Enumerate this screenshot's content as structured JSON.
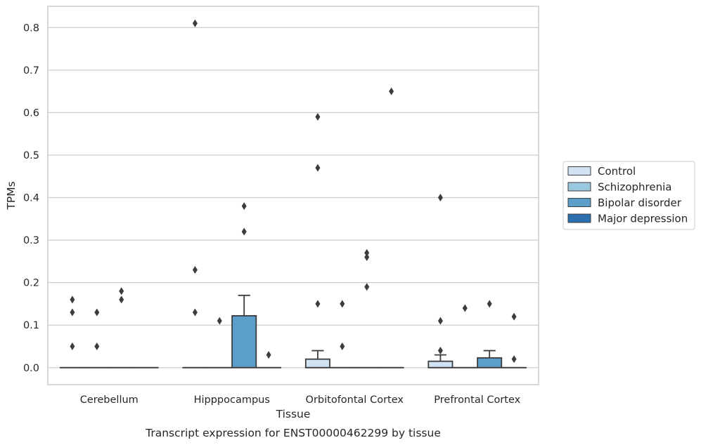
{
  "chart_data": {
    "type": "box",
    "categories": [
      "Cerebellum",
      "Hipppocampus",
      "Orbitofontal Cortex",
      "Prefrontal Cortex"
    ],
    "xlabel": "Tissue",
    "ylabel": "TPMs",
    "caption": "Transcript expression for ENST00000462299 by tissue",
    "ylim": [
      -0.04,
      0.85
    ],
    "yticks": [
      0.0,
      0.1,
      0.2,
      0.3,
      0.4,
      0.5,
      0.6,
      0.7,
      0.8
    ],
    "ytick_labels": [
      "0.0",
      "0.1",
      "0.2",
      "0.3",
      "0.4",
      "0.5",
      "0.6",
      "0.7",
      "0.8"
    ],
    "grid": "horizontal",
    "legend_position": "right",
    "series": [
      {
        "name": "Control",
        "color": "#d1e2f2",
        "boxes": [
          {
            "q1": 0,
            "median": 0,
            "q3": 0,
            "whisker_low": 0,
            "whisker_high": 0,
            "outliers": [
              0.05,
              0.13,
              0.16
            ]
          },
          {
            "q1": 0,
            "median": 0,
            "q3": 0,
            "whisker_low": 0,
            "whisker_high": 0,
            "outliers": [
              0.13,
              0.23,
              0.81
            ]
          },
          {
            "q1": 0,
            "median": 0,
            "q3": 0.02,
            "whisker_low": 0,
            "whisker_high": 0.04,
            "outliers": [
              0.15,
              0.47,
              0.59
            ]
          },
          {
            "q1": 0,
            "median": 0,
            "q3": 0.015,
            "whisker_low": 0,
            "whisker_high": 0.03,
            "outliers": [
              0.04,
              0.11,
              0.4
            ]
          }
        ]
      },
      {
        "name": "Schizophrenia",
        "color": "#9ac8e0",
        "boxes": [
          {
            "q1": 0,
            "median": 0,
            "q3": 0,
            "whisker_low": 0,
            "whisker_high": 0,
            "outliers": [
              0.05,
              0.13
            ]
          },
          {
            "q1": 0,
            "median": 0,
            "q3": 0,
            "whisker_low": 0,
            "whisker_high": 0,
            "outliers": [
              0.11
            ]
          },
          {
            "q1": 0,
            "median": 0,
            "q3": 0,
            "whisker_low": 0,
            "whisker_high": 0,
            "outliers": [
              0.05,
              0.15
            ]
          },
          {
            "q1": 0,
            "median": 0,
            "q3": 0,
            "whisker_low": 0,
            "whisker_high": 0,
            "outliers": [
              0.14
            ]
          }
        ]
      },
      {
        "name": "Bipolar disorder",
        "color": "#5a9ec9",
        "boxes": [
          {
            "q1": 0,
            "median": 0,
            "q3": 0,
            "whisker_low": 0,
            "whisker_high": 0,
            "outliers": [
              0.16,
              0.18
            ]
          },
          {
            "q1": 0,
            "median": 0,
            "q3": 0.122,
            "whisker_low": 0,
            "whisker_high": 0.17,
            "outliers": [
              0.32,
              0.38
            ]
          },
          {
            "q1": 0,
            "median": 0,
            "q3": 0,
            "whisker_low": 0,
            "whisker_high": 0,
            "outliers": [
              0.19,
              0.26,
              0.27
            ]
          },
          {
            "q1": 0,
            "median": 0,
            "q3": 0.023,
            "whisker_low": 0,
            "whisker_high": 0.04,
            "outliers": [
              0.15
            ]
          }
        ]
      },
      {
        "name": "Major depression",
        "color": "#2c6fb0",
        "boxes": [
          {
            "q1": 0,
            "median": 0,
            "q3": 0,
            "whisker_low": 0,
            "whisker_high": 0,
            "outliers": []
          },
          {
            "q1": 0,
            "median": 0,
            "q3": 0,
            "whisker_low": 0,
            "whisker_high": 0,
            "outliers": [
              0.03
            ]
          },
          {
            "q1": 0,
            "median": 0,
            "q3": 0,
            "whisker_low": 0,
            "whisker_high": 0,
            "outliers": [
              0.65
            ]
          },
          {
            "q1": 0,
            "median": 0,
            "q3": 0,
            "whisker_low": 0,
            "whisker_high": 0,
            "outliers": [
              0.02,
              0.12
            ]
          }
        ]
      }
    ]
  }
}
